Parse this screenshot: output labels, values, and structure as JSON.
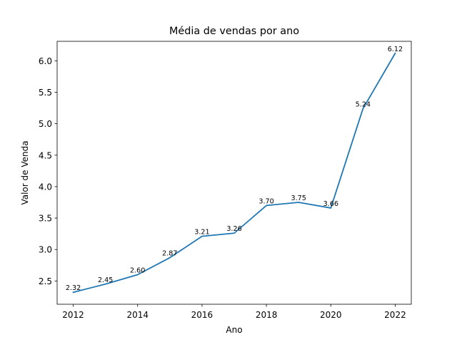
{
  "chart_data": {
    "type": "line",
    "title": "Média de vendas por ano",
    "xlabel": "Ano",
    "ylabel": "Valor de Venda",
    "x": [
      2012,
      2013,
      2014,
      2015,
      2016,
      2017,
      2018,
      2019,
      2020,
      2021,
      2022
    ],
    "series": [
      {
        "values": [
          2.32,
          2.45,
          2.6,
          2.87,
          3.21,
          3.26,
          3.7,
          3.75,
          3.66,
          5.24,
          6.12
        ],
        "color": "#1f77b4"
      }
    ],
    "data_labels": [
      "2.32",
      "2.45",
      "2.60",
      "2.87",
      "3.21",
      "3.26",
      "3.70",
      "3.75",
      "3.66",
      "5.24",
      "6.12"
    ],
    "xticks": [
      2012,
      2014,
      2016,
      2018,
      2020,
      2022
    ],
    "xtick_labels": [
      "2012",
      "2014",
      "2016",
      "2018",
      "2020",
      "2022"
    ],
    "yticks": [
      2.5,
      3.0,
      3.5,
      4.0,
      4.5,
      5.0,
      5.5,
      6.0
    ],
    "ytick_labels": [
      "2.5",
      "3.0",
      "3.5",
      "4.0",
      "4.5",
      "5.0",
      "5.5",
      "6.0"
    ],
    "xlim": [
      2011.5,
      2022.5
    ],
    "ylim": [
      2.13,
      6.31
    ],
    "grid": false,
    "legend": "none"
  }
}
